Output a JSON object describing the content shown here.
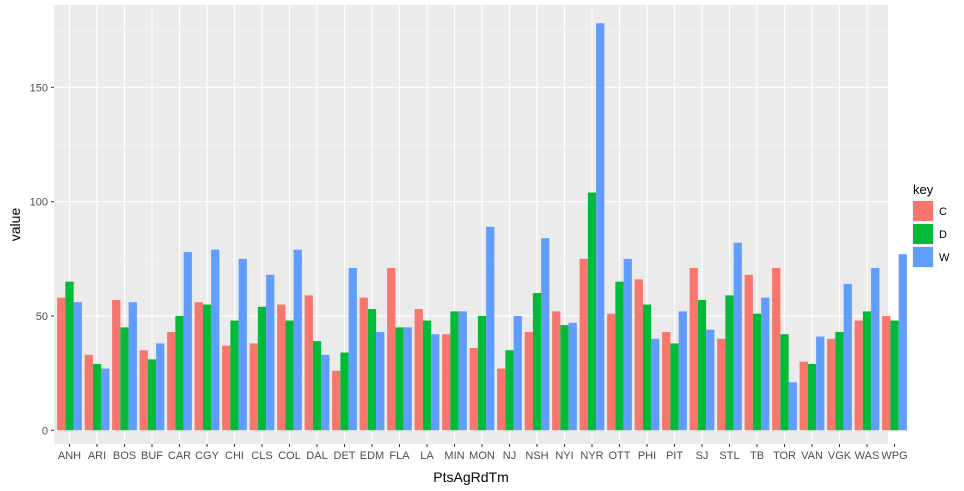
{
  "chart_data": {
    "type": "bar",
    "xlabel": "PtsAgRdTm",
    "ylabel": "value",
    "ylim": [
      -6,
      186
    ],
    "yticks": [
      0,
      50,
      100,
      150
    ],
    "grid": true,
    "legend_position": "right",
    "legend": {
      "title": "key",
      "entries": [
        "C",
        "D",
        "W"
      ]
    },
    "categories": [
      "ANH",
      "ARI",
      "BOS",
      "BUF",
      "CAR",
      "CGY",
      "CHI",
      "CLS",
      "COL",
      "DAL",
      "DET",
      "EDM",
      "FLA",
      "LA",
      "MIN",
      "MON",
      "NJ",
      "NSH",
      "NYI",
      "NYR",
      "OTT",
      "PHI",
      "PIT",
      "SJ",
      "STL",
      "TB",
      "TOR",
      "VAN",
      "VGK",
      "WAS",
      "WPG"
    ],
    "series": [
      {
        "name": "C",
        "color": "#F8766D",
        "values": [
          58,
          33,
          57,
          35,
          43,
          56,
          37,
          38,
          55,
          59,
          26,
          58,
          71,
          53,
          42,
          36,
          27,
          43,
          52,
          75,
          51,
          66,
          43,
          71,
          40,
          68,
          71,
          30,
          40,
          48,
          50
        ]
      },
      {
        "name": "D",
        "color": "#00BA38",
        "values": [
          65,
          29,
          45,
          31,
          50,
          55,
          48,
          54,
          48,
          39,
          34,
          53,
          45,
          48,
          52,
          50,
          35,
          60,
          46,
          104,
          65,
          55,
          38,
          57,
          59,
          51,
          42,
          29,
          43,
          52,
          48
        ]
      },
      {
        "name": "W",
        "color": "#619CFF",
        "values": [
          56,
          27,
          56,
          38,
          78,
          79,
          75,
          68,
          79,
          33,
          71,
          43,
          45,
          42,
          52,
          89,
          50,
          84,
          47,
          178,
          75,
          40,
          52,
          44,
          82,
          58,
          21,
          41,
          64,
          71,
          77
        ]
      }
    ]
  }
}
